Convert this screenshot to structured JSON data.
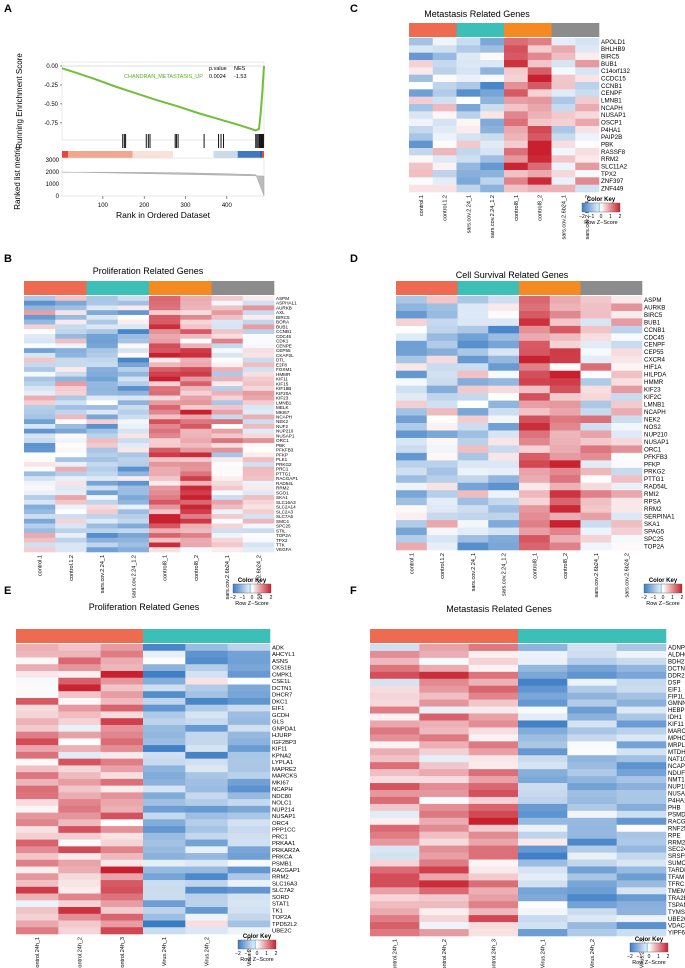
{
  "colors": {
    "control": "#ee6a50",
    "sars_2_24": "#3bbfb6",
    "control8": "#f58a22",
    "sars_2_6b24": "#8c8c8c",
    "virus": "#3bbfb6",
    "gsea_line": "#6fbf3a",
    "heat_low": "#3a7cc4",
    "heat_mid": "#ffffff",
    "heat_high": "#c8202e"
  },
  "color_key": {
    "title": "Color Key",
    "ticks": [
      "−2",
      "−1",
      "0",
      "1",
      "2"
    ],
    "xlabel": "Row Z−Score"
  },
  "samples_8": [
    "control.1",
    "control.1.2",
    "sars.cov.2.24_1",
    "sars.cov.2.24_1.2",
    "control8_1",
    "control8_2",
    "sars.cov.2.6b24_1",
    "sars.cov.2.6b24_2"
  ],
  "samples_6": [
    "Control.24h_1",
    "Control.24h_2",
    "Control.24h_3",
    "Virus.24h_1",
    "Virus.24h_2",
    "Virus.24h_3"
  ],
  "panels": [
    {
      "letter": "A",
      "type": "gsea",
      "chart_data": {
        "type": "line",
        "ylabel_top": "Running Enrichment Score",
        "ylabel_bottom": "Ranked list metric",
        "xlabel": "Rank in Ordered Dataset",
        "x_ticks": [
          100,
          200,
          300,
          400
        ],
        "y_ticks_top": [
          0.0,
          -0.25,
          -0.5,
          -0.75
        ],
        "y_ticks_bottom": [
          3000,
          2000,
          1000,
          0
        ],
        "gene_set": "CHANDRAN_METASTASIS_UP",
        "pvalue_label": "p.value",
        "pvalue": "0.0024",
        "nes_label": "NES",
        "nes": "-1.53",
        "x": [
          1,
          30,
          80,
          130,
          180,
          230,
          280,
          330,
          380,
          430,
          470,
          478,
          482,
          486,
          490
        ],
        "y": [
          -0.03,
          -0.08,
          -0.17,
          -0.27,
          -0.36,
          -0.45,
          -0.53,
          -0.62,
          -0.7,
          -0.78,
          -0.85,
          -0.83,
          -0.62,
          -0.35,
          0.0
        ],
        "hits": [
          148,
          152,
          155,
          205,
          210,
          214,
          275,
          278,
          282,
          345,
          380,
          386,
          392,
          470,
          473,
          476,
          479,
          481,
          483,
          485,
          487,
          489
        ]
      }
    },
    {
      "letter": "B",
      "title": "Proliferation Related Genes",
      "samples": "samples_8",
      "groups": [
        "control",
        "sars_2_24",
        "control8",
        "sars_2_6b24"
      ],
      "genes": [
        "ASPM",
        "ASPHAL1",
        "AURKB",
        "AXL",
        "BIRC5",
        "BORA",
        "BUB1",
        "CCNB1",
        "CDC45",
        "CDK1",
        "CENPE",
        "CEP55",
        "CKAP2L",
        "DTL",
        "E2F8",
        "FOXM1",
        "HMMR",
        "KIF11",
        "KIF15",
        "KIF18B",
        "KIF20A",
        "KIF23",
        "LMNB1",
        "MELK",
        "MKI67",
        "NCAPH",
        "NEK2",
        "NUF2",
        "NUP210",
        "NUSAP1",
        "ORC1",
        "PBK",
        "PFKFB3",
        "PFKP",
        "PLK1",
        "PRKG2",
        "PRC1",
        "PTTG1",
        "RACGAP1",
        "RAD54L",
        "RRM2",
        "SGO1",
        "SKA1",
        "SLC16A3",
        "SLC2A14",
        "SLC2A3",
        "SLC7A5",
        "SMC4",
        "SPC25",
        "STIL",
        "TOP2A",
        "TPX2",
        "TTK",
        "VEGFA"
      ]
    },
    {
      "letter": "C",
      "title": "Metastasis Related Genes",
      "samples": "samples_8",
      "groups": [
        "control",
        "sars_2_24",
        "control8",
        "sars_2_6b24"
      ],
      "genes": [
        "APOLD1",
        "BHLHB9",
        "BIRC5",
        "BUB1",
        "C14orf132",
        "CCDC15",
        "CCNB1",
        "CENPF",
        "LMNB1",
        "NCAPH",
        "NUSAP1",
        "OSCP1",
        "P4HA1",
        "PAIP2B",
        "PBK",
        "RASSF8",
        "RRM2",
        "SLC11A2",
        "TPX2",
        "ZNF397",
        "ZNF449"
      ]
    },
    {
      "letter": "D",
      "title": "Cell Survival Related Genes",
      "samples": "samples_8",
      "groups": [
        "control",
        "sars_2_24",
        "control8",
        "sars_2_6b24"
      ],
      "genes": [
        "ASPM",
        "AURKB",
        "BIRC5",
        "BUB1",
        "CCNB1",
        "CDC45",
        "CENPF",
        "CEP55",
        "CXCR4",
        "HIF1A",
        "HILPDA",
        "HMMR",
        "KIF23",
        "KIF2C",
        "LMNB1",
        "NCAPH",
        "NEK2",
        "NOS2",
        "NUP210",
        "NUSAP1",
        "ORC1",
        "PFKFB3",
        "PFKP",
        "PRKG2",
        "PTTG1",
        "RAD54L",
        "RMI2",
        "RPSA",
        "RRM2",
        "SERPINA1",
        "SKA1",
        "SPAG5",
        "SPC25",
        "TOP2A"
      ]
    },
    {
      "letter": "E",
      "title": "Proliferation Related Genes",
      "samples": "samples_6",
      "groups": [
        "control",
        "virus"
      ],
      "genes": [
        "ADK",
        "AHCYL1",
        "ASNS",
        "CKS1B",
        "CMPK1",
        "CSE1L",
        "DCTN1",
        "DHCR7",
        "DKC1",
        "EIF1",
        "GCDH",
        "GLS",
        "GNPDA1",
        "HJURP",
        "IGF2BP3",
        "KIF11",
        "KPNA2",
        "LYPLA1",
        "MAPRE2",
        "MARCKS",
        "MKI67",
        "NCAPH",
        "NDC80",
        "NOLC1",
        "NUP214",
        "NUSAP1",
        "ORC4",
        "PPP1CC",
        "PRC1",
        "PRKAA1",
        "PRKAR2A",
        "PRKCA",
        "PSMB1",
        "RACGAP1",
        "RRM2",
        "SLC16A3",
        "SLC7A2",
        "SORD",
        "STAT1",
        "TK1",
        "TOP2A",
        "TPD52L2",
        "UBE2C"
      ]
    },
    {
      "letter": "F",
      "title": "Metastasis Related Genes",
      "samples": "samples_6",
      "groups": [
        "control",
        "virus"
      ],
      "genes": [
        "ADNP",
        "ALDH6A1",
        "BDH2",
        "DCTN4",
        "DDR2",
        "DSP",
        "EIF1",
        "FIP1L1",
        "GMNN",
        "HEBP1",
        "IDH1",
        "KIF11",
        "MARCKS",
        "MPHOSPH10",
        "MRPL44",
        "MTDH",
        "NAT10",
        "NCAPH",
        "NDUFS1",
        "NMT1",
        "NUP153",
        "NUSAP1",
        "P4HA1",
        "PHB",
        "PSMD1",
        "RACGAP1",
        "RNF25",
        "RPE",
        "RRM2",
        "SEC24B",
        "SRSF9",
        "SUMO1",
        "TARDBP",
        "TFAM",
        "TFRC",
        "TMEM33",
        "TRA2B",
        "TSPAN6",
        "TYMS",
        "UBE2C",
        "VDAC1",
        "YIPF6"
      ]
    }
  ]
}
